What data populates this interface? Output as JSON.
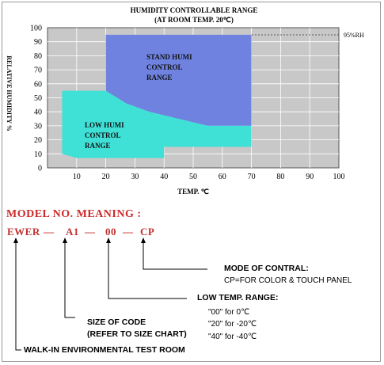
{
  "chart_data": {
    "type": "area",
    "title": "HUMIDITY CONTROLLABLE RANGE",
    "subtitle": "(AT ROOM TEMP. 20℃)",
    "xlabel": "TEMP. ℃",
    "ylabel": "RELATIVE HUMIDITY %",
    "xlim": [
      0,
      100
    ],
    "ylim": [
      0,
      100
    ],
    "xticks": [
      "10",
      "20",
      "30",
      "40",
      "50",
      "60",
      "70",
      "80",
      "90",
      "100"
    ],
    "yticks": [
      "0",
      "10",
      "20",
      "30",
      "40",
      "50",
      "60",
      "70",
      "80",
      "90",
      "100"
    ],
    "grid": true,
    "series": [
      {
        "name": "STAND HUMI CONTROL RANGE",
        "color": "#6f82e0",
        "points": [
          [
            20,
            95
          ],
          [
            70,
            95
          ],
          [
            70,
            30
          ],
          [
            55,
            30
          ],
          [
            35,
            40
          ],
          [
            27,
            46
          ],
          [
            20,
            55
          ]
        ]
      },
      {
        "name": "LOW HUMI CONTROL RANGE",
        "color": "#3fe0d6",
        "points": [
          [
            5,
            55
          ],
          [
            20,
            55
          ],
          [
            27,
            46
          ],
          [
            35,
            40
          ],
          [
            55,
            30
          ],
          [
            70,
            30
          ],
          [
            70,
            15
          ],
          [
            40,
            15
          ],
          [
            40,
            7
          ],
          [
            10,
            7
          ],
          [
            5,
            10
          ]
        ]
      }
    ],
    "annotations": [
      {
        "text": "95%RH",
        "y": 95
      },
      {
        "text": "STAND HUMI\nCONTROL\nRANGE"
      },
      {
        "text": "LOW HUMI\nCONTROL\nRANGE"
      }
    ]
  },
  "model": {
    "heading": "MODEL NO. MEANING :",
    "parts": [
      "EWER",
      "—",
      "A1",
      "—",
      "00",
      "—",
      "CP"
    ],
    "labels": {
      "mode_title": "MODE OF CONTRAL:",
      "mode_detail": "CP=FOR COLOR & TOUCH PANEL",
      "low_temp_title": "LOW TEMP. RANGE:",
      "low_temp_options": [
        "\"00\"  for  0℃",
        "\"20\"  for -20℃",
        "\"40\"  for -40℃"
      ],
      "size_title": "SIZE OF CODE",
      "size_detail": "(REFER TO SIZE CHART)",
      "walkin": "WALK-IN ENVIRONMENTAL TEST ROOM"
    }
  }
}
